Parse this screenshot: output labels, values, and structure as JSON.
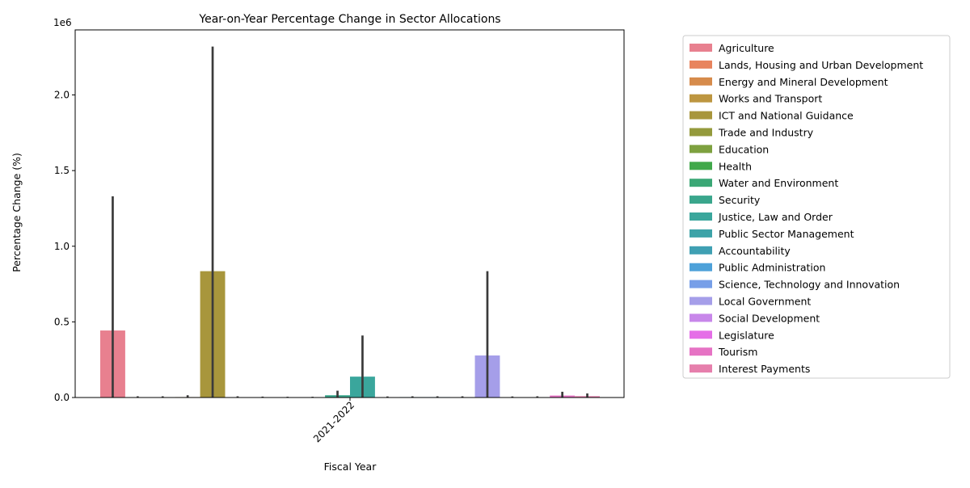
{
  "chart_data": {
    "type": "bar",
    "title": "Year-on-Year Percentage Change in Sector Allocations",
    "xlabel": "Fiscal Year",
    "ylabel": "Percentage Change (%)",
    "y_multiplier_label": "1e6",
    "categories": [
      "2021-2022"
    ],
    "ylim": [
      0,
      2430000
    ],
    "yticks": [
      0,
      500000,
      1000000,
      1500000,
      2000000
    ],
    "ytick_labels": [
      "0.0",
      "0.5",
      "1.0",
      "1.5",
      "2.0"
    ],
    "legend_position": "outside-right",
    "grid": false,
    "series": [
      {
        "name": "Agriculture",
        "color": "#e8808f",
        "value": 443000,
        "err_low": 0,
        "err_high": 1330000
      },
      {
        "name": "Lands, Housing and Urban Development",
        "color": "#e8845e",
        "value": 1500,
        "err_low": 0,
        "err_high": 8000
      },
      {
        "name": "Energy and Mineral Development",
        "color": "#d68b4b",
        "value": 1500,
        "err_low": 0,
        "err_high": 8000
      },
      {
        "name": "Works and Transport",
        "color": "#bd9640",
        "value": 3000,
        "err_low": 0,
        "err_high": 15000
      },
      {
        "name": "ICT and National Guidance",
        "color": "#a8963c",
        "value": 835000,
        "err_low": 0,
        "err_high": 2320000
      },
      {
        "name": "Trade and Industry",
        "color": "#949a3c",
        "value": 1500,
        "err_low": 0,
        "err_high": 8000
      },
      {
        "name": "Education",
        "color": "#7ea13f",
        "value": 2500,
        "err_low": 0,
        "err_high": 6000
      },
      {
        "name": "Health",
        "color": "#41a84a",
        "value": 1000,
        "err_low": 0,
        "err_high": 5000
      },
      {
        "name": "Water and Environment",
        "color": "#3aa775",
        "value": 1000,
        "err_low": 0,
        "err_high": 5000
      },
      {
        "name": "Security",
        "color": "#3aa68c",
        "value": 15000,
        "err_low": 0,
        "err_high": 45000
      },
      {
        "name": "Justice, Law and Order",
        "color": "#3aa69c",
        "value": 138000,
        "err_low": 0,
        "err_high": 410000
      },
      {
        "name": "Public Sector Management",
        "color": "#3da3a8",
        "value": 1500,
        "err_low": 0,
        "err_high": 7000
      },
      {
        "name": "Accountability",
        "color": "#3fa0b3",
        "value": 3000,
        "err_low": 0,
        "err_high": 8000
      },
      {
        "name": "Public Administration",
        "color": "#4da1d9",
        "value": 3000,
        "err_low": 0,
        "err_high": 8000
      },
      {
        "name": "Science, Technology and Innovation",
        "color": "#779fe8",
        "value": 1500,
        "err_low": 0,
        "err_high": 8000
      },
      {
        "name": "Local Government",
        "color": "#a59ee9",
        "value": 278000,
        "err_low": 0,
        "err_high": 835000
      },
      {
        "name": "Social Development",
        "color": "#c887ea",
        "value": 1500,
        "err_low": 0,
        "err_high": 7000
      },
      {
        "name": "Legislature",
        "color": "#e56ee7",
        "value": 1500,
        "err_low": 0,
        "err_high": 8000
      },
      {
        "name": "Tourism",
        "color": "#e673c4",
        "value": 13000,
        "err_low": 0,
        "err_high": 38000
      },
      {
        "name": "Interest Payments",
        "color": "#e67fac",
        "value": 9000,
        "err_low": 0,
        "err_high": 27000
      }
    ]
  }
}
